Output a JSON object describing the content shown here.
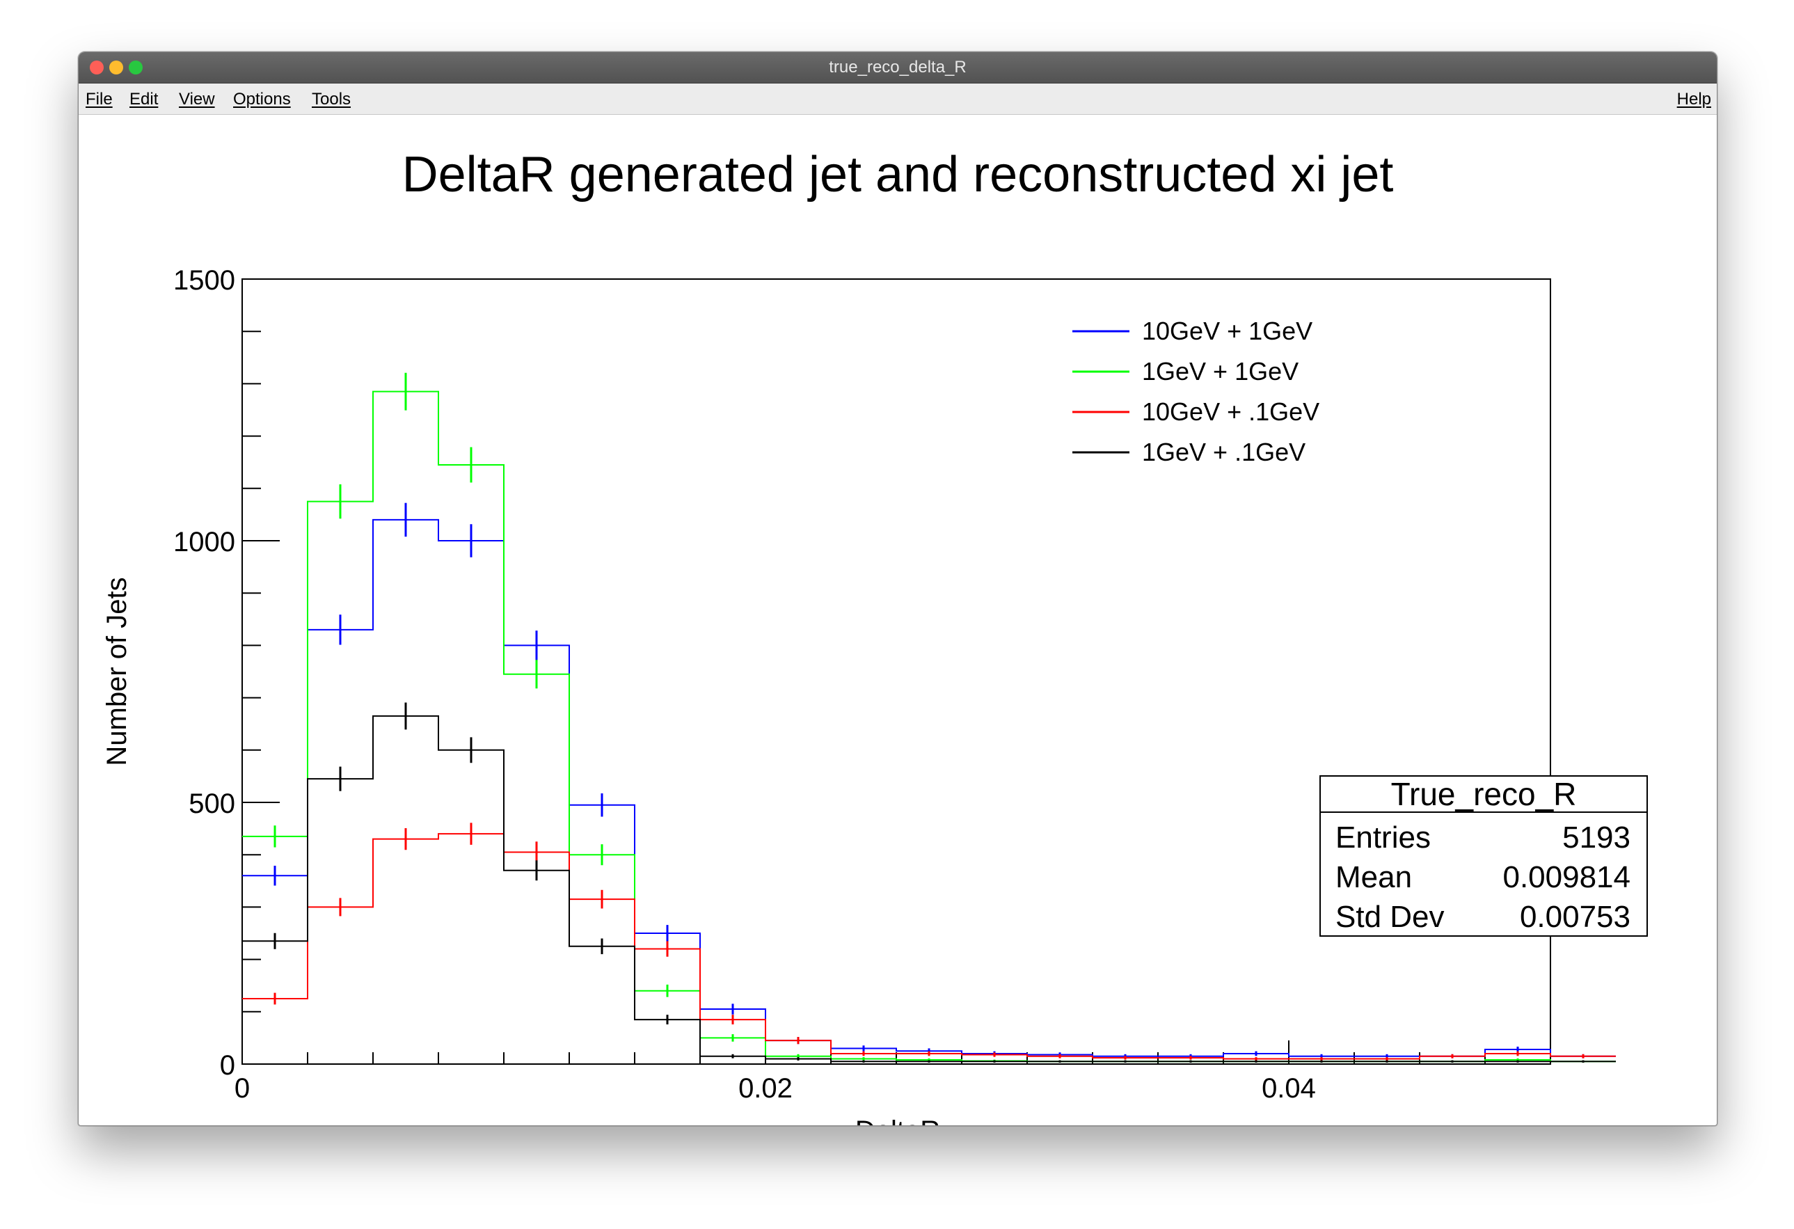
{
  "window": {
    "title": "true_reco_delta_R",
    "menu": [
      "File",
      "Edit",
      "View",
      "Options",
      "Tools"
    ],
    "help": "Help"
  },
  "chart_data": {
    "type": "histogram",
    "title": "DeltaR generated jet and reconstructed xi jet",
    "xlabel": "DeltaR",
    "ylabel": "Number of Jets",
    "xlim": [
      0,
      0.05
    ],
    "ylim": [
      0,
      1500
    ],
    "x_ticks": [
      "0",
      "0.02",
      "0.04"
    ],
    "y_ticks": [
      "0",
      "500",
      "1000",
      "1500"
    ],
    "bin_width": 0.0025,
    "bin_edges_start": 0,
    "legend_position": "top-right",
    "legend": [
      {
        "label": "10GeV + 1GeV",
        "color": "#0000ff"
      },
      {
        "label": "1GeV + 1GeV",
        "color": "#00ff00"
      },
      {
        "label": "10GeV + .1GeV",
        "color": "#ff0000"
      },
      {
        "label": "1GeV + .1GeV",
        "color": "#000000"
      }
    ],
    "series": [
      {
        "color": "#0000ff",
        "values": [
          360,
          830,
          1040,
          1000,
          800,
          495,
          250,
          105,
          45,
          30,
          25,
          20,
          18,
          15,
          15,
          20,
          15,
          15,
          15,
          28,
          15
        ]
      },
      {
        "color": "#00ff00",
        "values": [
          435,
          1075,
          1285,
          1145,
          745,
          400,
          140,
          50,
          15,
          10,
          8,
          6,
          5,
          5,
          5,
          5,
          5,
          5,
          5,
          8,
          5
        ]
      },
      {
        "color": "#ff0000",
        "values": [
          125,
          300,
          430,
          440,
          405,
          315,
          220,
          85,
          45,
          20,
          20,
          18,
          15,
          12,
          12,
          10,
          10,
          10,
          15,
          20,
          15
        ]
      },
      {
        "color": "#000000",
        "values": [
          235,
          545,
          665,
          600,
          370,
          225,
          85,
          15,
          10,
          5,
          5,
          5,
          5,
          5,
          5,
          5,
          5,
          5,
          5,
          5,
          5
        ]
      }
    ],
    "stats_box": {
      "title": "True_reco_R",
      "rows": [
        {
          "label": "Entries",
          "value": "5193"
        },
        {
          "label": "Mean",
          "value": "0.009814"
        },
        {
          "label": "Std Dev",
          "value": "0.00753"
        }
      ]
    }
  }
}
